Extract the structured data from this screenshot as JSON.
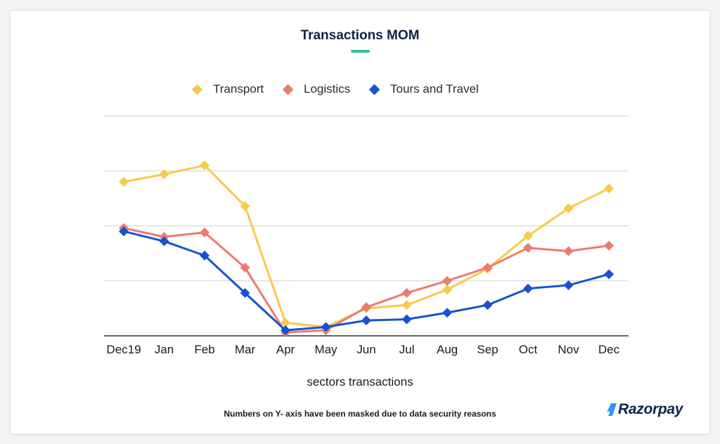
{
  "colors": {
    "accent": "#33c18a",
    "title": "#0c2448",
    "grid": "#d0d0d0",
    "axis": "#333333"
  },
  "footnote": "Numbers on Y- axis have been masked due to data security reasons",
  "brand": {
    "name": "Razorpay",
    "mark_icon": "razorpay-logo-icon",
    "mark_color": "#3395ff"
  },
  "chart_data": {
    "type": "line",
    "title": "Transactions MOM",
    "xlabel": "sectors transactions",
    "ylabel": "",
    "y_ticks_masked": true,
    "grid": "horizontal",
    "legend_position": "top-center",
    "marker": "diamond",
    "ylim": [
      0,
      100
    ],
    "categories": [
      "Dec19",
      "Jan",
      "Feb",
      "Mar",
      "Apr",
      "May",
      "Jun",
      "Jul",
      "Aug",
      "Sep",
      "Oct",
      "Nov",
      "Dec"
    ],
    "series": [
      {
        "name": "Transport",
        "color": "#f8ca4a",
        "values": [
          70,
          73.5,
          77.5,
          59,
          6,
          4,
          12.5,
          14,
          21,
          30.5,
          45.5,
          58,
          67
        ]
      },
      {
        "name": "Logistics",
        "color": "#ec7b70",
        "values": [
          49,
          45,
          47,
          31,
          1.5,
          2.5,
          13,
          19.5,
          25,
          31,
          40,
          38.5,
          41
        ]
      },
      {
        "name": "Tours and Travel",
        "color": "#1553d1",
        "values": [
          47.5,
          43,
          36.5,
          19.5,
          2.5,
          4,
          7,
          7.5,
          10.5,
          14,
          21.5,
          23,
          28
        ]
      }
    ]
  }
}
